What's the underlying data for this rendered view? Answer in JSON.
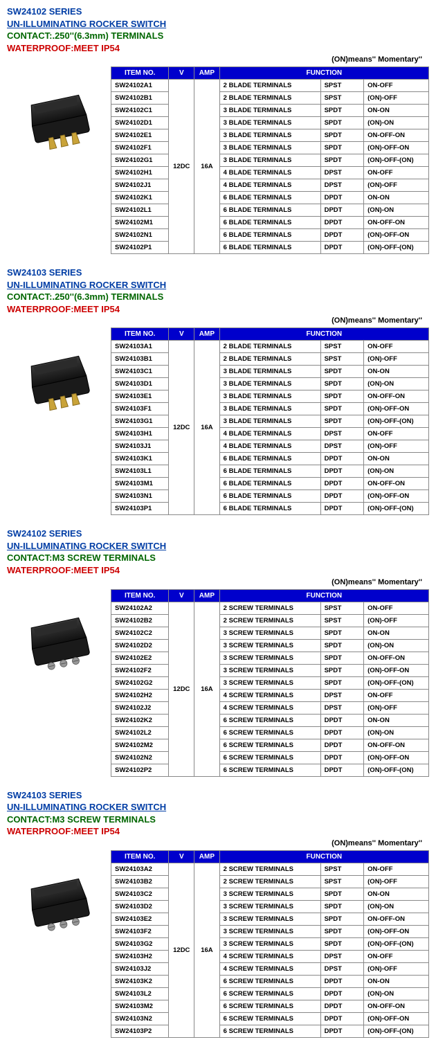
{
  "momentary_note": "(ON)means'' Momentary''",
  "headers": {
    "item": "ITEM NO.",
    "v": "V",
    "amp": "AMP",
    "function": "FUNCTION"
  },
  "sections": [
    {
      "series": "SW24102 SERIES",
      "title": "UN-ILLUMINATING ROCKER SWITCH",
      "contact": "CONTACT:.250''(6.3mm) TERMINALS",
      "waterproof": "WATERPROOF:MEET IP54",
      "v": "12DC",
      "amp": "16A",
      "image_type": "blade",
      "rows": [
        {
          "item": "SW24102A1",
          "term": "2 BLADE TERMINALS",
          "type": "SPST",
          "func": "ON-OFF"
        },
        {
          "item": "SW24102B1",
          "term": "2 BLADE TERMINALS",
          "type": "SPST",
          "func": "(ON)-OFF"
        },
        {
          "item": "SW24102C1",
          "term": "3 BLADE TERMINALS",
          "type": "SPDT",
          "func": "ON-ON"
        },
        {
          "item": "SW24102D1",
          "term": "3 BLADE TERMINALS",
          "type": "SPDT",
          "func": "(ON)-ON"
        },
        {
          "item": "SW24102E1",
          "term": "3 BLADE TERMINALS",
          "type": "SPDT",
          "func": "ON-OFF-ON"
        },
        {
          "item": "SW24102F1",
          "term": "3 BLADE TERMINALS",
          "type": "SPDT",
          "func": "(ON)-OFF-ON"
        },
        {
          "item": "SW24102G1",
          "term": "3 BLADE TERMINALS",
          "type": "SPDT",
          "func": "(ON)-OFF-(ON)"
        },
        {
          "item": "SW24102H1",
          "term": "4 BLADE TERMINALS",
          "type": "DPST",
          "func": "ON-OFF"
        },
        {
          "item": "SW24102J1",
          "term": "4 BLADE TERMINALS",
          "type": "DPST",
          "func": "(ON)-OFF"
        },
        {
          "item": "SW24102K1",
          "term": "6 BLADE TERMINALS",
          "type": "DPDT",
          "func": "ON-ON"
        },
        {
          "item": "SW24102L1",
          "term": "6 BLADE TERMINALS",
          "type": "DPDT",
          "func": "(ON)-ON"
        },
        {
          "item": "SW24102M1",
          "term": "6 BLADE TERMINALS",
          "type": "DPDT",
          "func": "ON-OFF-ON"
        },
        {
          "item": "SW24102N1",
          "term": "6 BLADE TERMINALS",
          "type": "DPDT",
          "func": "(ON)-OFF-ON"
        },
        {
          "item": "SW24102P1",
          "term": "6 BLADE TERMINALS",
          "type": "DPDT",
          "func": "(ON)-OFF-(ON)"
        }
      ]
    },
    {
      "series": "SW24103 SERIES",
      "title": "UN-ILLUMINATING ROCKER SWITCH",
      "contact": "CONTACT:.250''(6.3mm) TERMINALS",
      "waterproof": "WATERPROOF:MEET IP54",
      "v": "12DC",
      "amp": "16A",
      "image_type": "blade",
      "rows": [
        {
          "item": "SW24103A1",
          "term": "2 BLADE TERMINALS",
          "type": "SPST",
          "func": "ON-OFF"
        },
        {
          "item": "SW24103B1",
          "term": "2 BLADE TERMINALS",
          "type": "SPST",
          "func": "(ON)-OFF"
        },
        {
          "item": "SW24103C1",
          "term": "3 BLADE TERMINALS",
          "type": "SPDT",
          "func": "ON-ON"
        },
        {
          "item": "SW24103D1",
          "term": "3 BLADE TERMINALS",
          "type": "SPDT",
          "func": "(ON)-ON"
        },
        {
          "item": "SW24103E1",
          "term": "3 BLADE TERMINALS",
          "type": "SPDT",
          "func": "ON-OFF-ON"
        },
        {
          "item": "SW24103F1",
          "term": "3 BLADE TERMINALS",
          "type": "SPDT",
          "func": "(ON)-OFF-ON"
        },
        {
          "item": "SW24103G1",
          "term": "3 BLADE TERMINALS",
          "type": "SPDT",
          "func": "(ON)-OFF-(ON)"
        },
        {
          "item": "SW24103H1",
          "term": "4 BLADE TERMINALS",
          "type": "DPST",
          "func": "ON-OFF"
        },
        {
          "item": "SW24103J1",
          "term": "4 BLADE TERMINALS",
          "type": "DPST",
          "func": "(ON)-OFF"
        },
        {
          "item": "SW24103K1",
          "term": "6 BLADE TERMINALS",
          "type": "DPDT",
          "func": "ON-ON"
        },
        {
          "item": "SW24103L1",
          "term": "6 BLADE TERMINALS",
          "type": "DPDT",
          "func": "(ON)-ON"
        },
        {
          "item": "SW24103M1",
          "term": "6 BLADE TERMINALS",
          "type": "DPDT",
          "func": "ON-OFF-ON"
        },
        {
          "item": "SW24103N1",
          "term": "6 BLADE TERMINALS",
          "type": "DPDT",
          "func": "(ON)-OFF-ON"
        },
        {
          "item": "SW24103P1",
          "term": "6 BLADE TERMINALS",
          "type": "DPDT",
          "func": "(ON)-OFF-(ON)"
        }
      ]
    },
    {
      "series": "SW24102 SERIES",
      "title": "UN-ILLUMINATING ROCKER SWITCH",
      "contact": "CONTACT:M3 SCREW TERMINALS",
      "waterproof": "WATERPROOF:MEET IP54",
      "v": "12DC",
      "amp": "16A",
      "image_type": "screw",
      "rows": [
        {
          "item": "SW24102A2",
          "term": "2 SCREW TERMINALS",
          "type": "SPST",
          "func": "ON-OFF"
        },
        {
          "item": "SW24102B2",
          "term": "2 SCREW TERMINALS",
          "type": "SPST",
          "func": "(ON)-OFF"
        },
        {
          "item": "SW24102C2",
          "term": "3 SCREW TERMINALS",
          "type": "SPDT",
          "func": "ON-ON"
        },
        {
          "item": "SW24102D2",
          "term": "3 SCREW TERMINALS",
          "type": "SPDT",
          "func": "(ON)-ON"
        },
        {
          "item": "SW24102E2",
          "term": "3 SCREW TERMINALS",
          "type": "SPDT",
          "func": "ON-OFF-ON"
        },
        {
          "item": "SW24102F2",
          "term": "3 SCREW TERMINALS",
          "type": "SPDT",
          "func": "(ON)-OFF-ON"
        },
        {
          "item": "SW24102G2",
          "term": "3 SCREW TERMINALS",
          "type": "SPDT",
          "func": "(ON)-OFF-(ON)"
        },
        {
          "item": "SW24102H2",
          "term": "4 SCREW TERMINALS",
          "type": "DPST",
          "func": "ON-OFF"
        },
        {
          "item": "SW24102J2",
          "term": "4 SCREW TERMINALS",
          "type": "DPST",
          "func": "(ON)-OFF"
        },
        {
          "item": "SW24102K2",
          "term": "6 SCREW TERMINALS",
          "type": "DPDT",
          "func": "ON-ON"
        },
        {
          "item": "SW24102L2",
          "term": "6 SCREW TERMINALS",
          "type": "DPDT",
          "func": "(ON)-ON"
        },
        {
          "item": "SW24102M2",
          "term": "6 SCREW TERMINALS",
          "type": "DPDT",
          "func": "ON-OFF-ON"
        },
        {
          "item": "SW24102N2",
          "term": "6 SCREW TERMINALS",
          "type": "DPDT",
          "func": "(ON)-OFF-ON"
        },
        {
          "item": "SW24102P2",
          "term": "6 SCREW TERMINALS",
          "type": "DPDT",
          "func": "(ON)-OFF-(ON)"
        }
      ]
    },
    {
      "series": "SW24103 SERIES",
      "title": "UN-ILLUMINATING ROCKER SWITCH",
      "contact": "CONTACT:M3 SCREW TERMINALS",
      "waterproof": "WATERPROOF:MEET IP54",
      "v": "12DC",
      "amp": "16A",
      "image_type": "screw",
      "rows": [
        {
          "item": "SW24103A2",
          "term": "2 SCREW TERMINALS",
          "type": "SPST",
          "func": "ON-OFF"
        },
        {
          "item": "SW24103B2",
          "term": "2 SCREW TERMINALS",
          "type": "SPST",
          "func": "(ON)-OFF"
        },
        {
          "item": "SW24103C2",
          "term": "3 SCREW TERMINALS",
          "type": "SPDT",
          "func": "ON-ON"
        },
        {
          "item": "SW24103D2",
          "term": "3 SCREW TERMINALS",
          "type": "SPDT",
          "func": "(ON)-ON"
        },
        {
          "item": "SW24103E2",
          "term": "3 SCREW TERMINALS",
          "type": "SPDT",
          "func": "ON-OFF-ON"
        },
        {
          "item": "SW24103F2",
          "term": "3 SCREW TERMINALS",
          "type": "SPDT",
          "func": "(ON)-OFF-ON"
        },
        {
          "item": "SW24103G2",
          "term": "3 SCREW TERMINALS",
          "type": "SPDT",
          "func": "(ON)-OFF-(ON)"
        },
        {
          "item": "SW24103H2",
          "term": "4 SCREW TERMINALS",
          "type": "DPST",
          "func": "ON-OFF"
        },
        {
          "item": "SW24103J2",
          "term": "4 SCREW TERMINALS",
          "type": "DPST",
          "func": "(ON)-OFF"
        },
        {
          "item": "SW24103K2",
          "term": "6 SCREW TERMINALS",
          "type": "DPDT",
          "func": "ON-ON"
        },
        {
          "item": "SW24103L2",
          "term": "6 SCREW TERMINALS",
          "type": "DPDT",
          "func": "(ON)-ON"
        },
        {
          "item": "SW24103M2",
          "term": "6 SCREW TERMINALS",
          "type": "DPDT",
          "func": "ON-OFF-ON"
        },
        {
          "item": "SW24103N2",
          "term": "6 SCREW TERMINALS",
          "type": "DPDT",
          "func": "(ON)-OFF-ON"
        },
        {
          "item": "SW24103P2",
          "term": "6 SCREW TERMINALS",
          "type": "DPDT",
          "func": "(ON)-OFF-(ON)"
        }
      ]
    }
  ],
  "colors": {
    "header_bg": "#0000cc",
    "header_fg": "#ffffff",
    "series_color": "#003da5",
    "contact_color": "#006600",
    "waterproof_color": "#cc0000",
    "border_color": "#888888"
  }
}
